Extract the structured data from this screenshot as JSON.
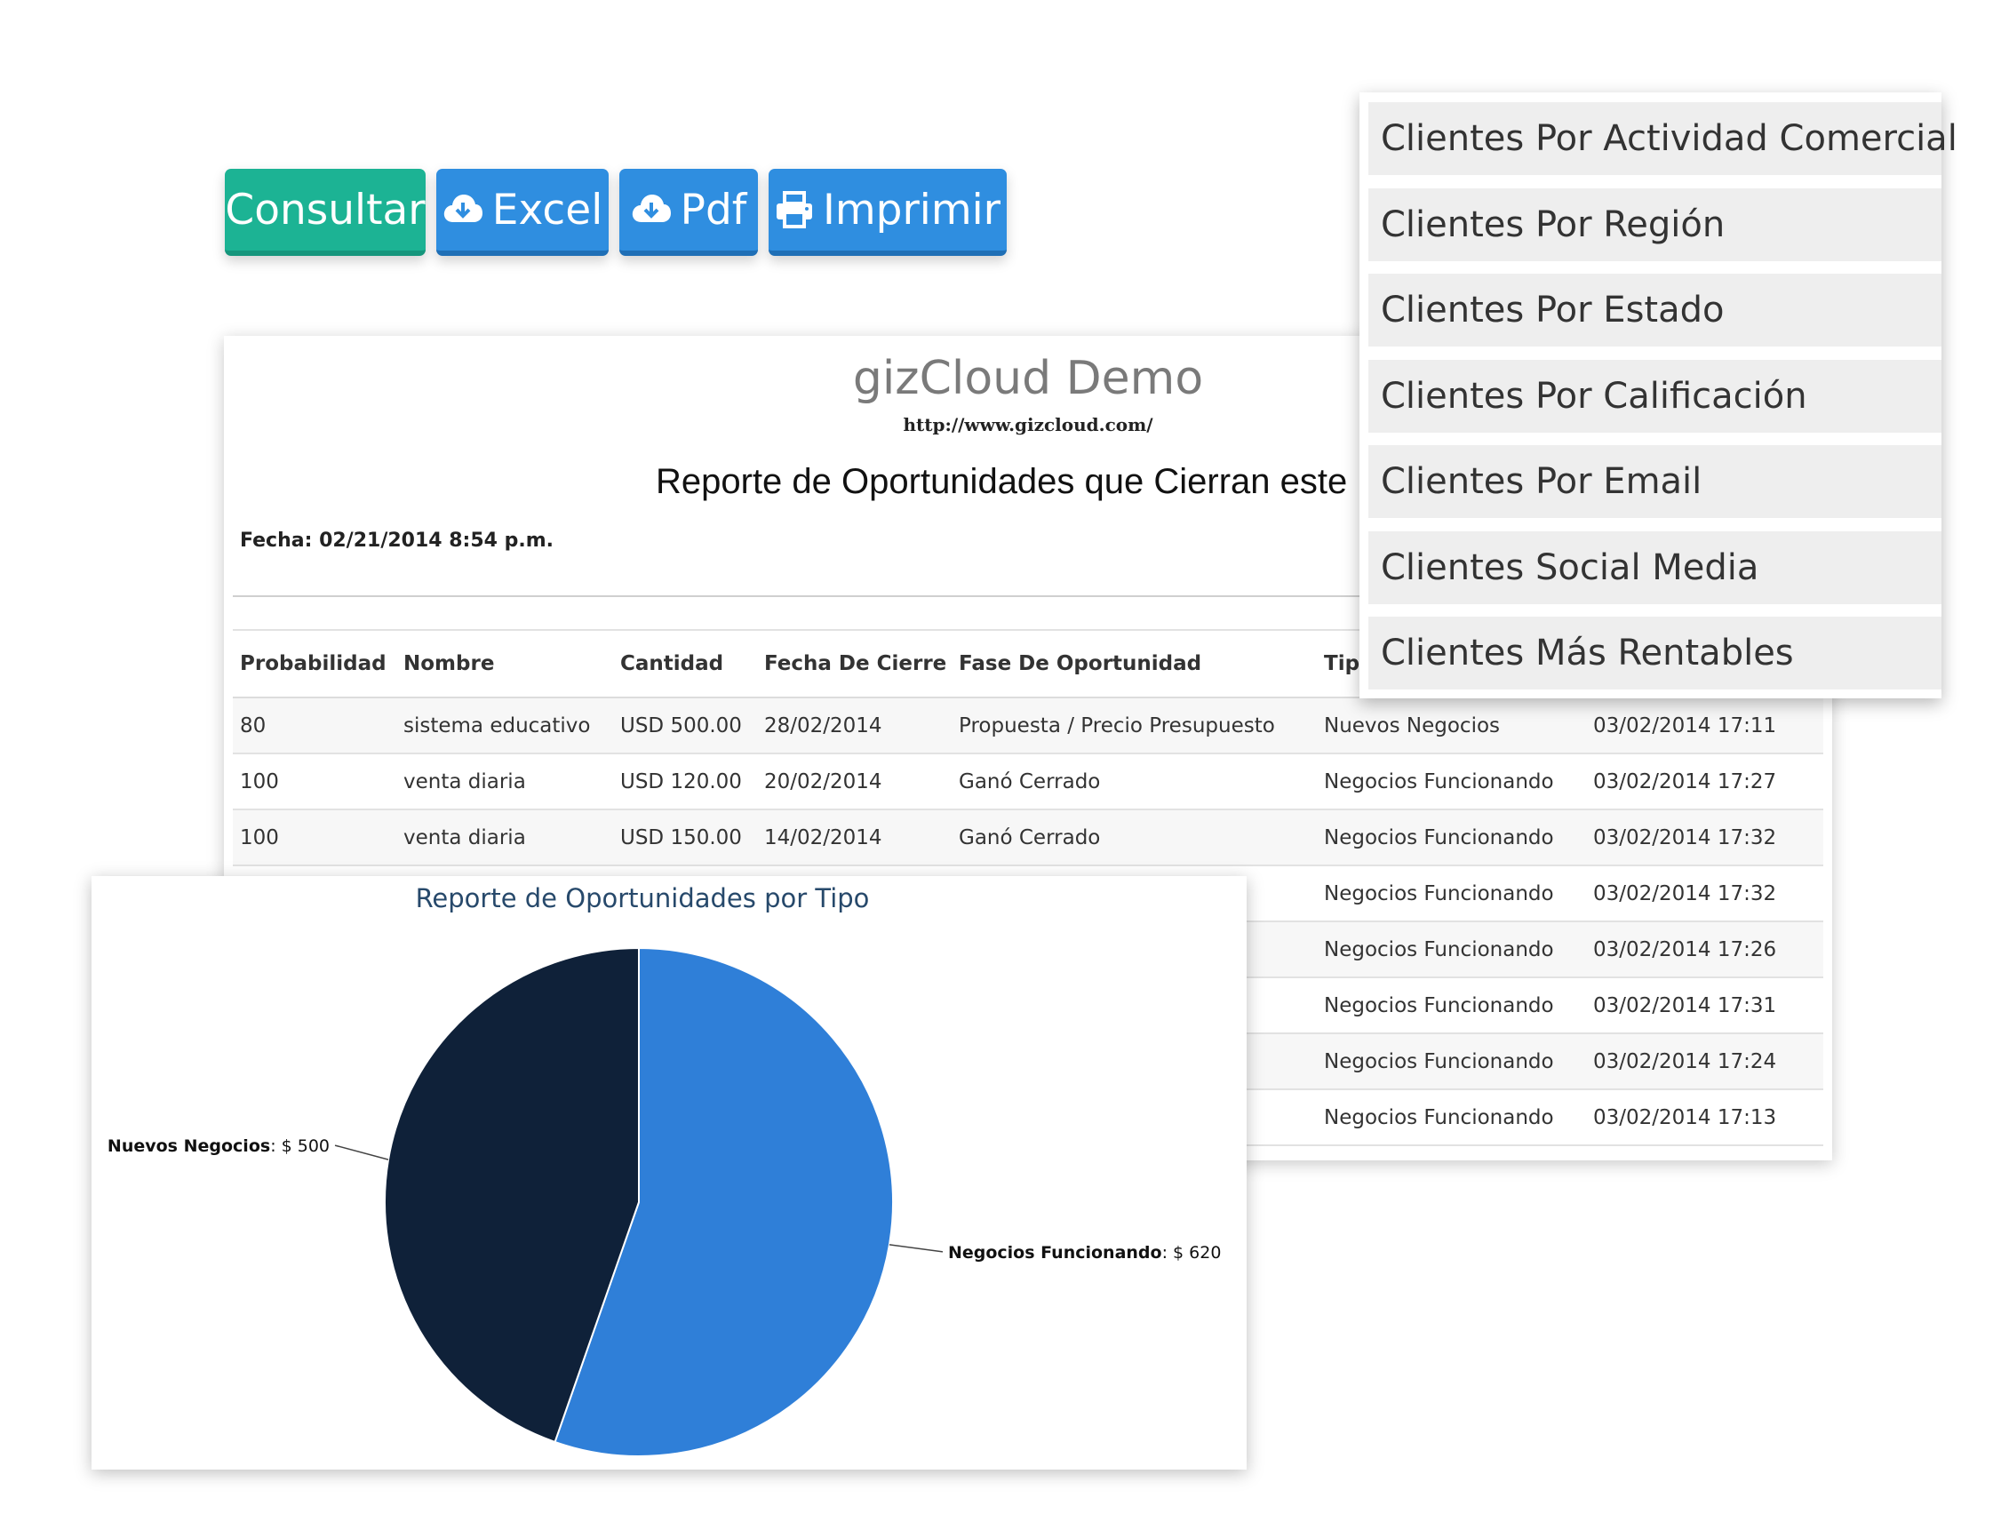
{
  "toolbar": {
    "consultar": "Consultar",
    "excel": "Excel",
    "pdf": "Pdf",
    "imprimir": "Imprimir"
  },
  "report": {
    "company": "gizCloud Demo",
    "url": "http://www.gizcloud.com/",
    "title": "Reporte de Oportunidades que Cierran este M",
    "fecha": "Fecha: 02/21/2014 8:54 p.m.",
    "columns": [
      "Probabilidad",
      "Nombre",
      "Cantidad",
      "Fecha De Cierre",
      "Fase De Oportunidad",
      "Tip",
      ""
    ],
    "rows": [
      [
        "80",
        "sistema educativo",
        "USD 500.00",
        "28/02/2014",
        "Propuesta / Precio Presupuesto",
        "Nuevos Negocios",
        "03/02/2014 17:11"
      ],
      [
        "100",
        "venta diaria",
        "USD 120.00",
        "20/02/2014",
        "Ganó Cerrado",
        "Negocios Funcionando",
        "03/02/2014 17:27"
      ],
      [
        "100",
        "venta diaria",
        "USD 150.00",
        "14/02/2014",
        "Ganó Cerrado",
        "Negocios Funcionando",
        "03/02/2014 17:32"
      ],
      [
        "",
        "",
        "",
        "",
        "",
        "Negocios Funcionando",
        "03/02/2014 17:32"
      ],
      [
        "",
        "",
        "",
        "",
        "",
        "Negocios Funcionando",
        "03/02/2014 17:26"
      ],
      [
        "",
        "",
        "",
        "",
        "",
        "Negocios Funcionando",
        "03/02/2014 17:31"
      ],
      [
        "",
        "",
        "",
        "",
        "",
        "Negocios Funcionando",
        "03/02/2014 17:24"
      ],
      [
        "",
        "",
        "",
        "",
        "",
        "Negocios Funcionando",
        "03/02/2014 17:13"
      ]
    ]
  },
  "menu": {
    "items": [
      "Clientes Por Actividad Comercial",
      "Clientes Por Región",
      "Clientes Por Estado",
      "Clientes Por Calificación",
      "Clientes Por Email",
      "Clientes Social Media",
      "Clientes Más Rentables"
    ]
  },
  "colors": {
    "consultar": "#1cb394",
    "button_blue": "#2f8ee0",
    "pie_dark": "#0f2139",
    "pie_blue": "#2f7fd8",
    "chart_title": "#27496b"
  },
  "chart_data": {
    "type": "pie",
    "title": "Reporte de Oportunidades por Tipo",
    "series": [
      {
        "name": "",
        "categories": [
          "Negocios Funcionando",
          "Nuevos Negocios"
        ],
        "values": [
          620,
          500
        ],
        "labels": [
          ": $ 620",
          ": $ 500"
        ],
        "colors": [
          "#2f7fd8",
          "#0f2139"
        ]
      }
    ],
    "legend": "none"
  }
}
